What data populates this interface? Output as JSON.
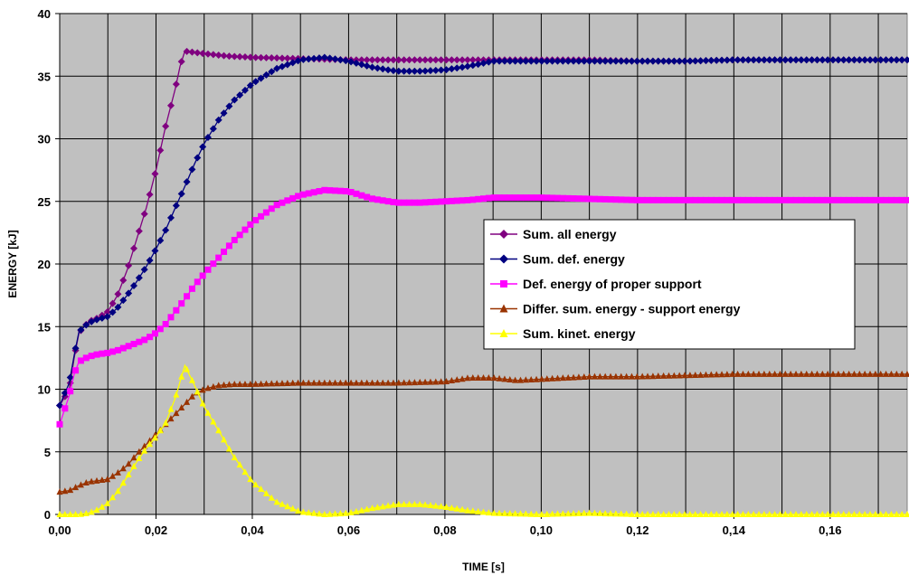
{
  "chart_data": {
    "type": "line",
    "xlabel": "TIME [s]",
    "ylabel": "ENERGY [kJ]",
    "xlim": [
      0,
      0.176
    ],
    "ylim": [
      0,
      40
    ],
    "xticks": [
      0,
      0.02,
      0.04,
      0.06,
      0.08,
      0.1,
      0.12,
      0.14,
      0.16
    ],
    "xtick_labels": [
      "0,00",
      "0,02",
      "0,04",
      "0,06",
      "0,08",
      "0,10",
      "0,12",
      "0,14",
      "0,16"
    ],
    "yticks": [
      0,
      5,
      10,
      15,
      20,
      25,
      30,
      35,
      40
    ],
    "ytick_labels": [
      "0",
      "5",
      "10",
      "15",
      "20",
      "25",
      "30",
      "35",
      "40"
    ],
    "x_gridlines": [
      0,
      0.01,
      0.02,
      0.03,
      0.04,
      0.05,
      0.06,
      0.07,
      0.08,
      0.09,
      0.1,
      0.11,
      0.12,
      0.13,
      0.14,
      0.15,
      0.16,
      0.17
    ],
    "grid": true,
    "plot_background": "#c0c0c0",
    "legend_position": "center-right",
    "series": [
      {
        "name": "Sum. all energy",
        "color": "#800080",
        "marker": "diamond",
        "points": [
          [
            0,
            8.7
          ],
          [
            0.002,
            10
          ],
          [
            0.003,
            12.5
          ],
          [
            0.004,
            14.5
          ],
          [
            0.006,
            15.4
          ],
          [
            0.008,
            15.7
          ],
          [
            0.01,
            16.2
          ],
          [
            0.012,
            17.5
          ],
          [
            0.014,
            19.5
          ],
          [
            0.016,
            22
          ],
          [
            0.018,
            24.5
          ],
          [
            0.02,
            27.5
          ],
          [
            0.022,
            31
          ],
          [
            0.024,
            34
          ],
          [
            0.025,
            35.8
          ],
          [
            0.026,
            37
          ],
          [
            0.03,
            36.8
          ],
          [
            0.035,
            36.6
          ],
          [
            0.04,
            36.5
          ],
          [
            0.05,
            36.4
          ],
          [
            0.06,
            36.3
          ],
          [
            0.07,
            36.3
          ],
          [
            0.08,
            36.3
          ],
          [
            0.09,
            36.3
          ],
          [
            0.1,
            36.3
          ],
          [
            0.11,
            36.3
          ],
          [
            0.12,
            36.2
          ],
          [
            0.13,
            36.2
          ],
          [
            0.14,
            36.3
          ],
          [
            0.15,
            36.3
          ],
          [
            0.16,
            36.3
          ],
          [
            0.176,
            36.3
          ]
        ]
      },
      {
        "name": "Sum. def. energy",
        "color": "#000080",
        "marker": "diamond",
        "points": [
          [
            0,
            8.7
          ],
          [
            0.002,
            10.5
          ],
          [
            0.003,
            12.7
          ],
          [
            0.004,
            14.6
          ],
          [
            0.006,
            15.3
          ],
          [
            0.008,
            15.6
          ],
          [
            0.01,
            15.8
          ],
          [
            0.012,
            16.5
          ],
          [
            0.014,
            17.5
          ],
          [
            0.016,
            18.6
          ],
          [
            0.018,
            19.8
          ],
          [
            0.02,
            21.2
          ],
          [
            0.022,
            22.7
          ],
          [
            0.024,
            24.5
          ],
          [
            0.026,
            26.2
          ],
          [
            0.028,
            28
          ],
          [
            0.03,
            29.6
          ],
          [
            0.033,
            31.5
          ],
          [
            0.036,
            33
          ],
          [
            0.04,
            34.4
          ],
          [
            0.045,
            35.6
          ],
          [
            0.05,
            36.3
          ],
          [
            0.055,
            36.5
          ],
          [
            0.06,
            36.2
          ],
          [
            0.065,
            35.7
          ],
          [
            0.07,
            35.4
          ],
          [
            0.075,
            35.4
          ],
          [
            0.08,
            35.5
          ],
          [
            0.085,
            35.8
          ],
          [
            0.09,
            36.2
          ],
          [
            0.1,
            36.2
          ],
          [
            0.11,
            36.2
          ],
          [
            0.12,
            36.2
          ],
          [
            0.13,
            36.2
          ],
          [
            0.14,
            36.3
          ],
          [
            0.15,
            36.3
          ],
          [
            0.16,
            36.3
          ],
          [
            0.176,
            36.3
          ]
        ]
      },
      {
        "name": "Def. energy of proper support",
        "color": "#ff00ff",
        "marker": "square",
        "points": [
          [
            0,
            7.2
          ],
          [
            0.002,
            9.5
          ],
          [
            0.003,
            11.2
          ],
          [
            0.004,
            12.2
          ],
          [
            0.006,
            12.6
          ],
          [
            0.008,
            12.8
          ],
          [
            0.01,
            12.9
          ],
          [
            0.012,
            13.1
          ],
          [
            0.014,
            13.4
          ],
          [
            0.016,
            13.7
          ],
          [
            0.018,
            14
          ],
          [
            0.02,
            14.5
          ],
          [
            0.022,
            15.2
          ],
          [
            0.024,
            16.2
          ],
          [
            0.026,
            17.2
          ],
          [
            0.028,
            18.3
          ],
          [
            0.03,
            19.2
          ],
          [
            0.033,
            20.5
          ],
          [
            0.036,
            21.8
          ],
          [
            0.04,
            23.3
          ],
          [
            0.045,
            24.7
          ],
          [
            0.05,
            25.5
          ],
          [
            0.055,
            25.9
          ],
          [
            0.06,
            25.8
          ],
          [
            0.065,
            25.2
          ],
          [
            0.07,
            24.9
          ],
          [
            0.075,
            24.9
          ],
          [
            0.08,
            25
          ],
          [
            0.085,
            25.1
          ],
          [
            0.09,
            25.3
          ],
          [
            0.1,
            25.3
          ],
          [
            0.11,
            25.2
          ],
          [
            0.12,
            25.1
          ],
          [
            0.13,
            25.1
          ],
          [
            0.14,
            25.1
          ],
          [
            0.15,
            25.1
          ],
          [
            0.16,
            25.1
          ],
          [
            0.176,
            25.1
          ]
        ]
      },
      {
        "name": "Differ. sum. energy - support energy",
        "color": "#993300",
        "marker": "triangle",
        "points": [
          [
            0,
            1.8
          ],
          [
            0.002,
            1.9
          ],
          [
            0.004,
            2.3
          ],
          [
            0.006,
            2.6
          ],
          [
            0.008,
            2.7
          ],
          [
            0.01,
            2.8
          ],
          [
            0.012,
            3.3
          ],
          [
            0.014,
            3.9
          ],
          [
            0.016,
            4.8
          ],
          [
            0.018,
            5.6
          ],
          [
            0.02,
            6.4
          ],
          [
            0.022,
            7.2
          ],
          [
            0.024,
            8
          ],
          [
            0.026,
            8.8
          ],
          [
            0.028,
            9.6
          ],
          [
            0.03,
            10
          ],
          [
            0.033,
            10.3
          ],
          [
            0.036,
            10.4
          ],
          [
            0.04,
            10.4
          ],
          [
            0.05,
            10.5
          ],
          [
            0.06,
            10.5
          ],
          [
            0.07,
            10.5
          ],
          [
            0.08,
            10.6
          ],
          [
            0.085,
            10.9
          ],
          [
            0.09,
            10.9
          ],
          [
            0.095,
            10.7
          ],
          [
            0.1,
            10.8
          ],
          [
            0.11,
            11
          ],
          [
            0.12,
            11
          ],
          [
            0.13,
            11.1
          ],
          [
            0.14,
            11.2
          ],
          [
            0.15,
            11.2
          ],
          [
            0.16,
            11.2
          ],
          [
            0.176,
            11.2
          ]
        ]
      },
      {
        "name": "Sum. kinet. energy",
        "color": "#ffff00",
        "marker": "triangle",
        "points": [
          [
            0,
            0
          ],
          [
            0.004,
            0
          ],
          [
            0.006,
            0.1
          ],
          [
            0.008,
            0.4
          ],
          [
            0.01,
            0.9
          ],
          [
            0.012,
            1.8
          ],
          [
            0.014,
            3
          ],
          [
            0.016,
            4.2
          ],
          [
            0.018,
            5.3
          ],
          [
            0.02,
            6.2
          ],
          [
            0.022,
            7.3
          ],
          [
            0.024,
            9.3
          ],
          [
            0.026,
            11.9
          ],
          [
            0.028,
            10.3
          ],
          [
            0.03,
            8.6
          ],
          [
            0.033,
            6.7
          ],
          [
            0.036,
            4.7
          ],
          [
            0.04,
            2.6
          ],
          [
            0.045,
            1
          ],
          [
            0.05,
            0.2
          ],
          [
            0.055,
            0
          ],
          [
            0.06,
            0.1
          ],
          [
            0.065,
            0.5
          ],
          [
            0.07,
            0.8
          ],
          [
            0.075,
            0.8
          ],
          [
            0.08,
            0.6
          ],
          [
            0.085,
            0.3
          ],
          [
            0.09,
            0.1
          ],
          [
            0.1,
            0
          ],
          [
            0.11,
            0.1
          ],
          [
            0.12,
            0
          ],
          [
            0.13,
            0
          ],
          [
            0.14,
            0
          ],
          [
            0.15,
            0
          ],
          [
            0.16,
            0
          ],
          [
            0.176,
            0
          ]
        ]
      }
    ]
  }
}
